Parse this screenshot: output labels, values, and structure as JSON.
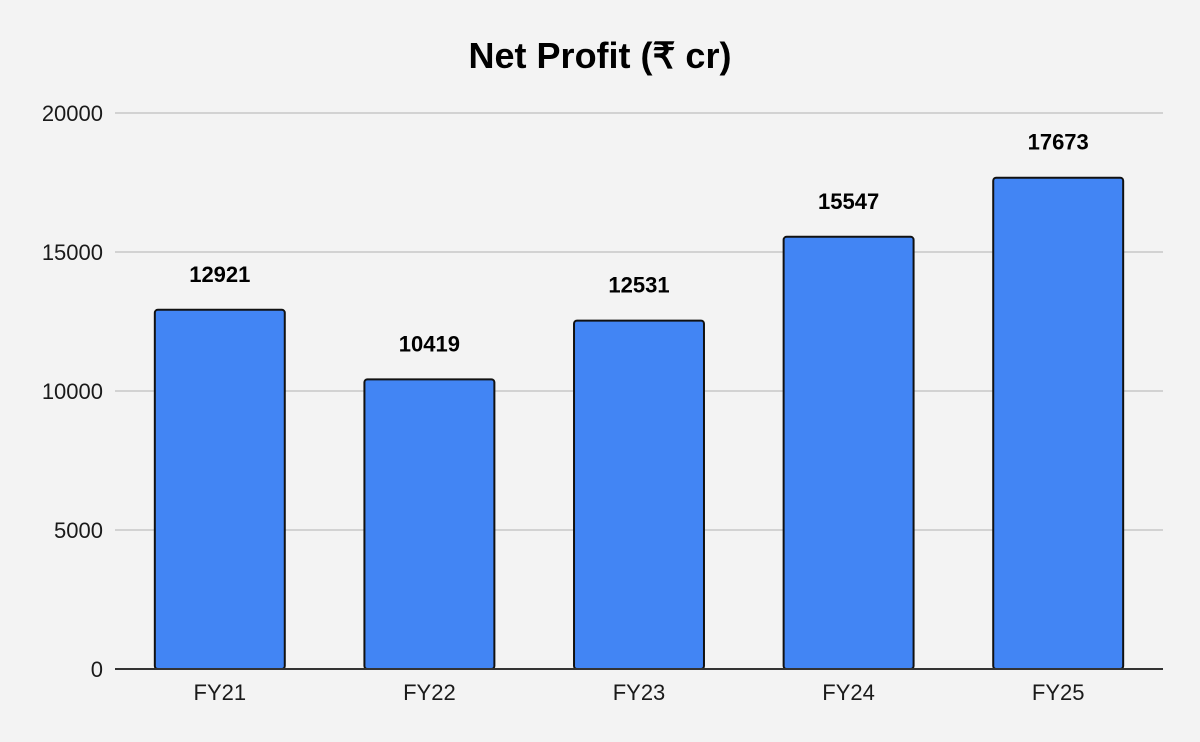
{
  "chart_data": {
    "type": "bar",
    "title": "Net Profit (₹ cr)",
    "categories": [
      "FY21",
      "FY22",
      "FY23",
      "FY24",
      "FY25"
    ],
    "values": [
      12921,
      10419,
      12531,
      15547,
      17673
    ],
    "data_labels": [
      "12921",
      "10419",
      "12531",
      "15547",
      "17673"
    ],
    "xlabel": "",
    "ylabel": "",
    "ylim": [
      0,
      20000
    ],
    "yticks": [
      0,
      5000,
      10000,
      15000,
      20000
    ],
    "ytick_labels": [
      "0",
      "5000",
      "10000",
      "15000",
      "20000"
    ],
    "grid": true,
    "legend": "none",
    "colors": {
      "bar_fill": "#4285f4",
      "bar_stroke": "#111111",
      "background": "#f3f3f3"
    }
  }
}
